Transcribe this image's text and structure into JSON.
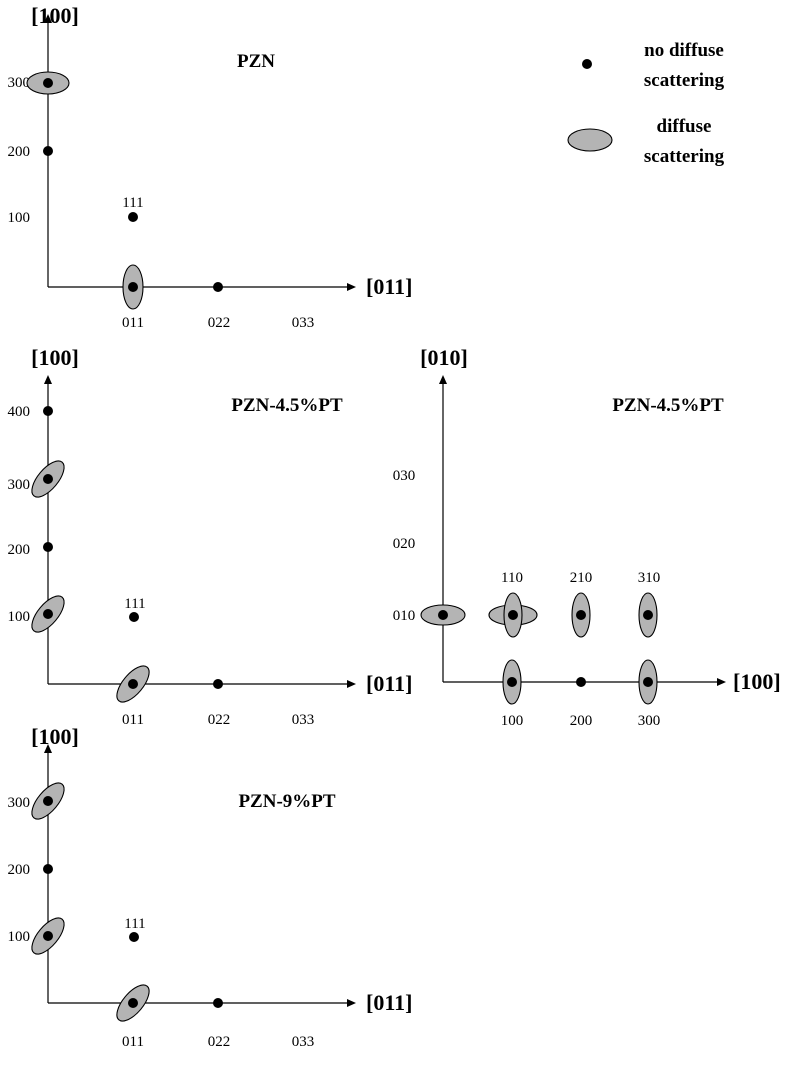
{
  "colors": {
    "diffuse_fill": "#b4b4b4",
    "point": "#000000"
  },
  "legend": {
    "no_diffuse_line1": "no diffuse",
    "no_diffuse_line2": "scattering",
    "diffuse_line1": "diffuse",
    "diffuse_line2": "scattering"
  },
  "panels": [
    {
      "title": "PZN",
      "y_axis_label": "[100]",
      "x_axis_label": "[011]",
      "y_ticks": [
        "300",
        "200",
        "100"
      ],
      "x_ticks": [
        "011",
        "022",
        "033"
      ],
      "point_labels": [
        "111"
      ]
    },
    {
      "title": "PZN-4.5%PT",
      "y_axis_label": "[100]",
      "x_axis_label": "[011]",
      "y_ticks": [
        "400",
        "300",
        "200",
        "100"
      ],
      "x_ticks": [
        "011",
        "022",
        "033"
      ],
      "point_labels": [
        "111"
      ]
    },
    {
      "title": "PZN-4.5%PT",
      "y_axis_label": "[010]",
      "x_axis_label": "[100]",
      "y_ticks": [
        "030",
        "020",
        "010"
      ],
      "x_ticks": [
        "100",
        "200",
        "300"
      ],
      "point_labels": [
        "110",
        "210",
        "310"
      ]
    },
    {
      "title": "PZN-9%PT",
      "y_axis_label": "[100]",
      "x_axis_label": "[011]",
      "y_ticks": [
        "300",
        "200",
        "100"
      ],
      "x_ticks": [
        "011",
        "022",
        "033"
      ],
      "point_labels": [
        "111"
      ]
    }
  ]
}
